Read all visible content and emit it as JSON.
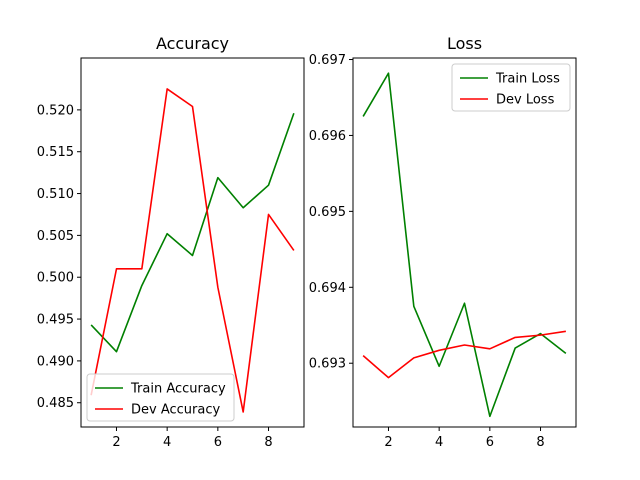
{
  "chart_data": [
    {
      "type": "line",
      "title": "Accuracy",
      "xlabel": "",
      "ylabel": "",
      "x": [
        1,
        2,
        3,
        4,
        5,
        6,
        7,
        8,
        9
      ],
      "xlim": [
        0.6,
        9.4
      ],
      "ylim": [
        0.4821,
        0.5262
      ],
      "xticks": [
        2,
        4,
        6,
        8
      ],
      "xtick_labels": [
        "2",
        "4",
        "6",
        "8"
      ],
      "yticks": [
        0.485,
        0.49,
        0.495,
        0.5,
        0.505,
        0.51,
        0.515,
        0.52
      ],
      "ytick_labels": [
        "0.485",
        "0.490",
        "0.495",
        "0.500",
        "0.505",
        "0.510",
        "0.515",
        "0.520"
      ],
      "grid": false,
      "legend_position": "lower-left",
      "series": [
        {
          "name": "Train Accuracy",
          "color": "#008000",
          "values": [
            0.4943,
            0.4911,
            0.499,
            0.5052,
            0.5026,
            0.5119,
            0.5083,
            0.511,
            0.5196
          ]
        },
        {
          "name": "Dev Accuracy",
          "color": "#ff0000",
          "values": [
            0.4859,
            0.501,
            0.501,
            0.5225,
            0.5204,
            0.4988,
            0.4839,
            0.5075,
            0.5032
          ]
        }
      ]
    },
    {
      "type": "line",
      "title": "Loss",
      "xlabel": "",
      "ylabel": "",
      "x": [
        1,
        2,
        3,
        4,
        5,
        6,
        7,
        8,
        9
      ],
      "xlim": [
        0.6,
        9.4
      ],
      "ylim": [
        0.69216,
        0.69702
      ],
      "xticks": [
        2,
        4,
        6,
        8
      ],
      "xtick_labels": [
        "2",
        "4",
        "6",
        "8"
      ],
      "yticks": [
        0.693,
        0.694,
        0.695,
        0.696,
        0.697
      ],
      "ytick_labels": [
        "0.693",
        "0.694",
        "0.695",
        "0.696",
        "0.697"
      ],
      "grid": false,
      "legend_position": "upper-right",
      "series": [
        {
          "name": "Train Loss",
          "color": "#008000",
          "values": [
            0.69625,
            0.69682,
            0.69375,
            0.69296,
            0.69379,
            0.6923,
            0.6932,
            0.69339,
            0.69313
          ]
        },
        {
          "name": "Dev Loss",
          "color": "#ff0000",
          "values": [
            0.6931,
            0.69281,
            0.69307,
            0.69317,
            0.69324,
            0.69319,
            0.69334,
            0.69337,
            0.69342
          ]
        }
      ]
    }
  ]
}
